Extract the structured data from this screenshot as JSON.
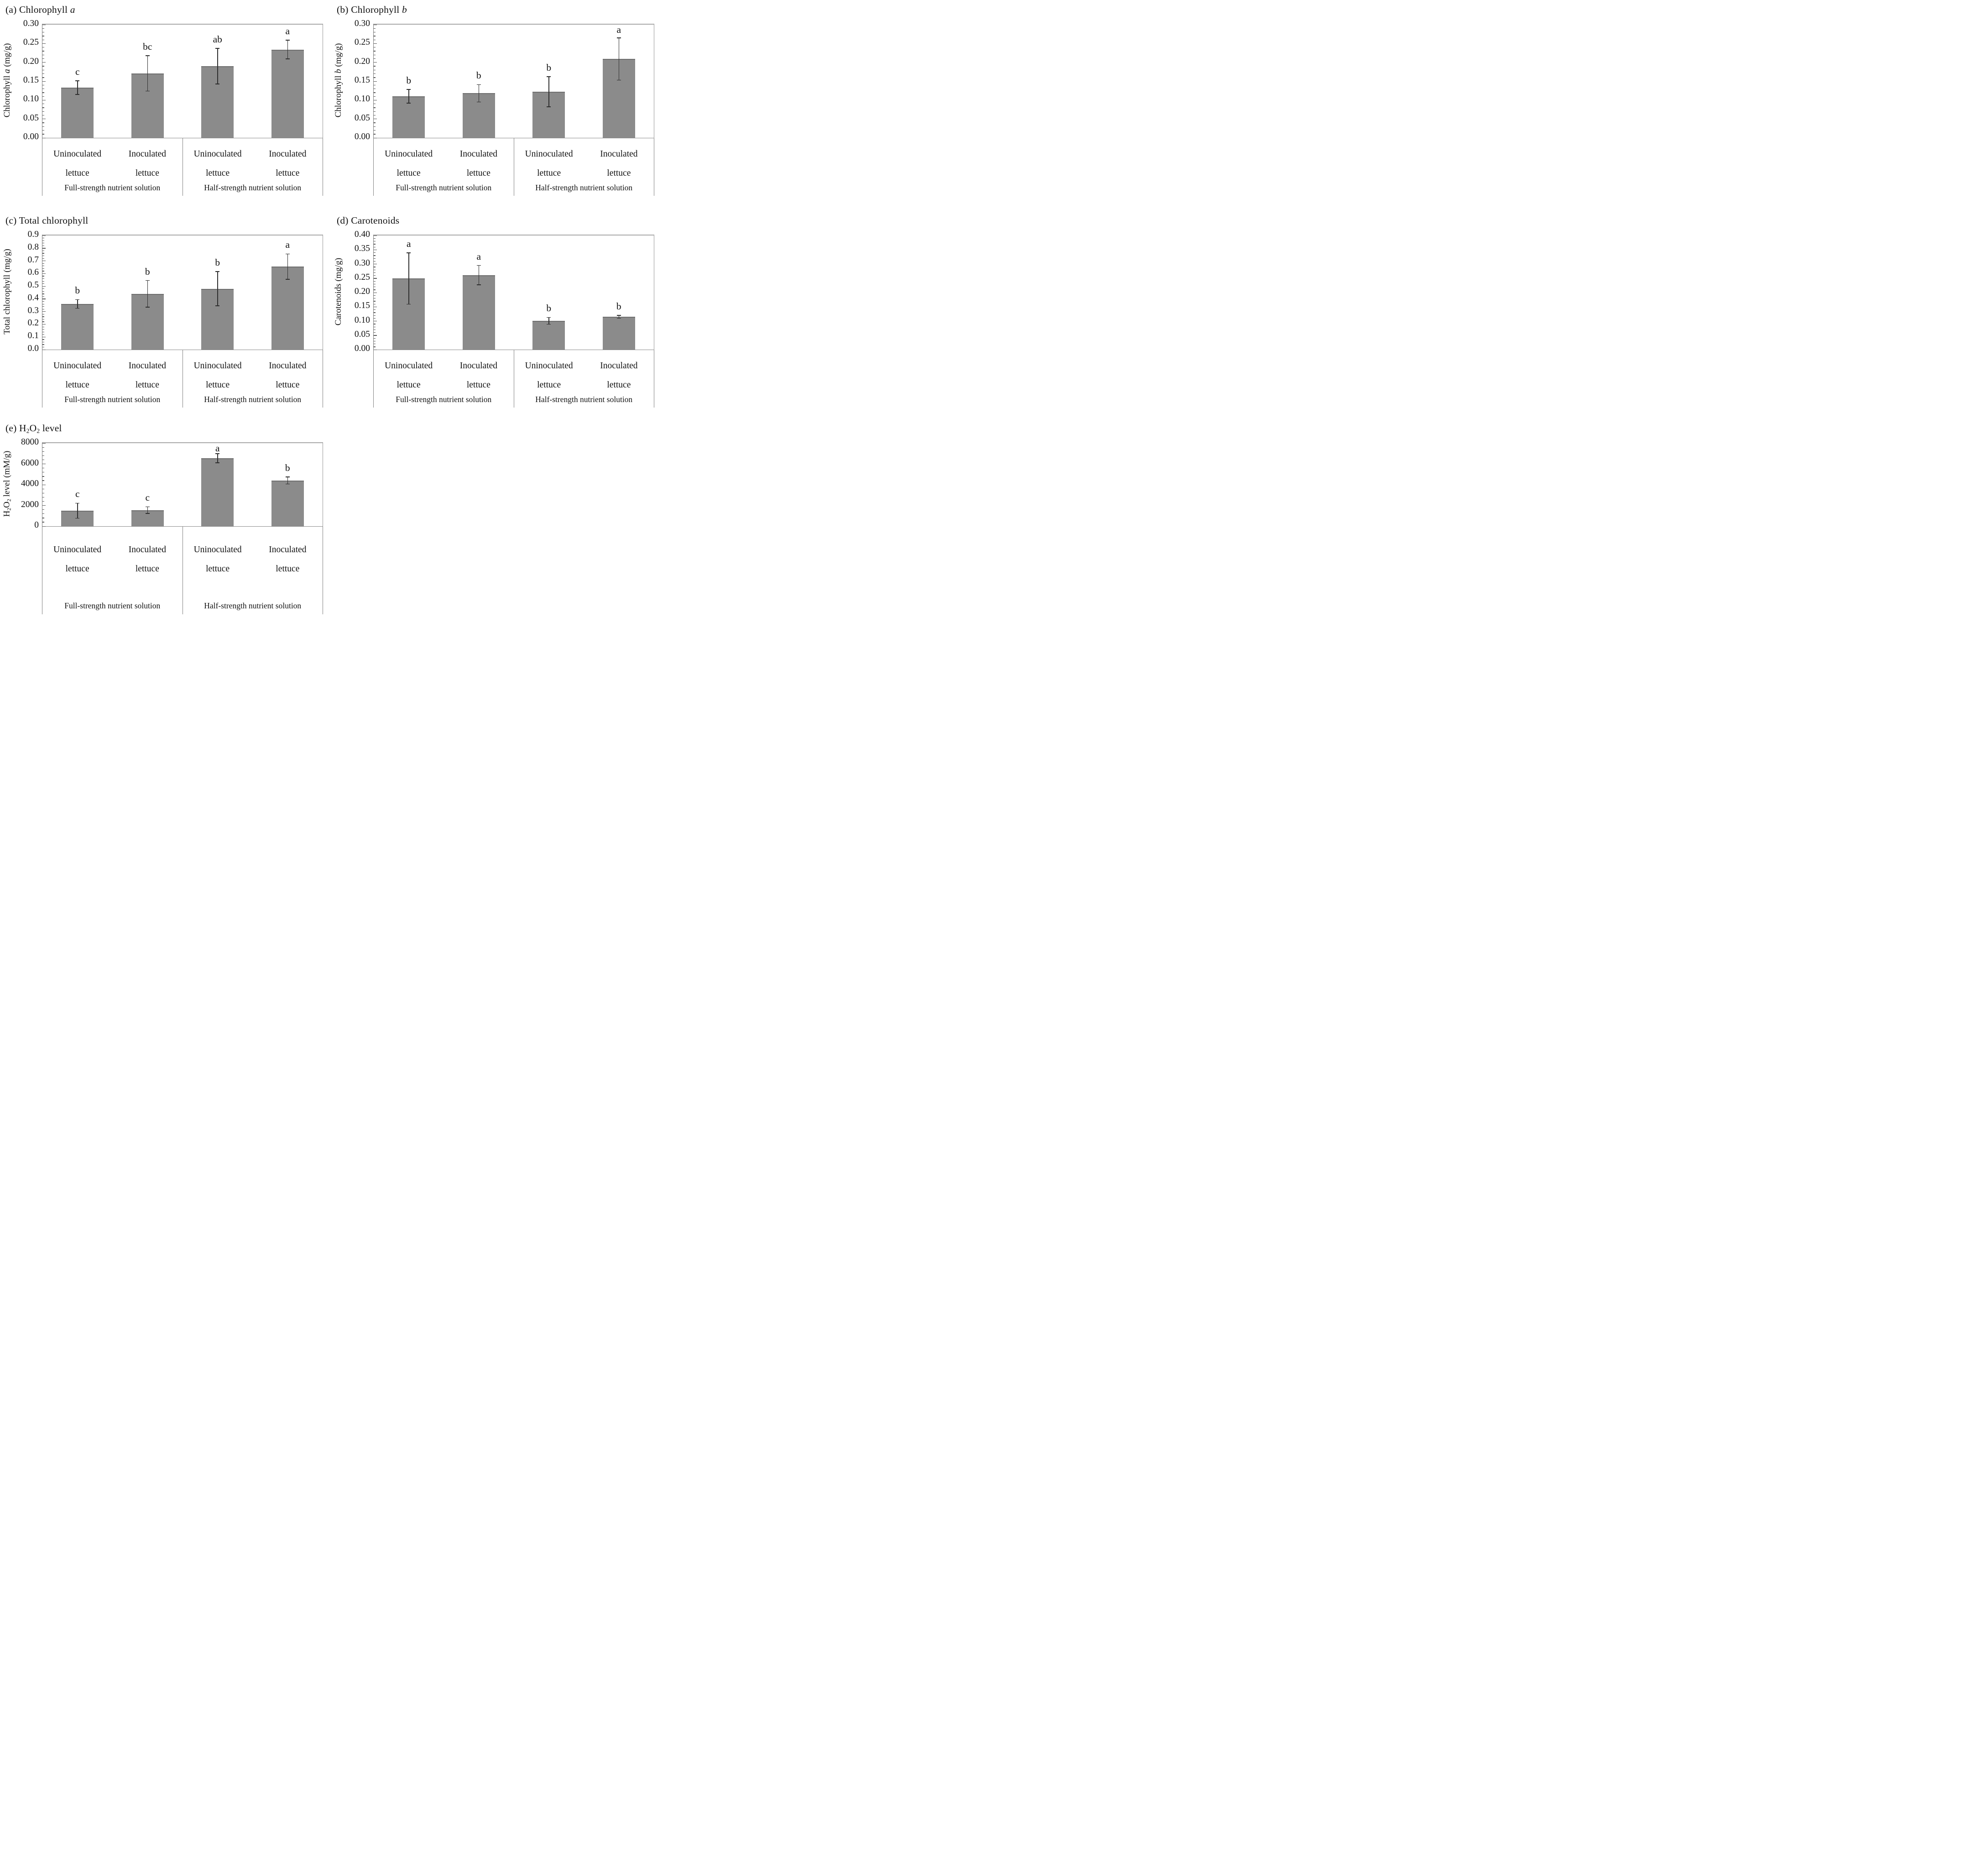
{
  "style": {
    "bar_fill": "#8b8b8b",
    "bar_cap": "#6e6e6e",
    "axis_color": "#7f7f7f",
    "error_color": "#2e2e2e",
    "text_color": "#111111",
    "background": "#ffffff"
  },
  "chart_data": [
    {
      "type": "bar",
      "panel": "a",
      "title_segments": [
        {
          "t": "(a) Chlorophyll ",
          "s": "n"
        },
        {
          "t": "a",
          "s": "i"
        }
      ],
      "ylabel_segments": [
        {
          "t": "Chlorophyll ",
          "s": "n"
        },
        {
          "t": "a",
          "s": "i"
        },
        {
          "t": " (mg/g)",
          "s": "n"
        }
      ],
      "ylim": [
        0,
        0.3
      ],
      "yticks": [
        "0.00",
        "0.05",
        "0.10",
        "0.15",
        "0.20",
        "0.25",
        "0.30"
      ],
      "minor_divisions_per_major": 5,
      "grid": false,
      "legend": "none",
      "categories": [
        "Uninoculated lettuce",
        "Inoculated lettuce",
        "Uninoculated lettuce",
        "Inoculated lettuce"
      ],
      "groups": [
        "Full-strength nutrient solution",
        "Half-strength nutrient solution"
      ],
      "values": [
        0.133,
        0.171,
        0.19,
        0.234
      ],
      "errors": [
        0.018,
        0.047,
        0.047,
        0.025
      ],
      "letters": [
        "c",
        "bc",
        "ab",
        "a"
      ]
    },
    {
      "type": "bar",
      "panel": "b",
      "title_segments": [
        {
          "t": "(b) Chlorophyll ",
          "s": "n"
        },
        {
          "t": "b",
          "s": "i"
        }
      ],
      "ylabel_segments": [
        {
          "t": "Chlorophyll ",
          "s": "n"
        },
        {
          "t": "b",
          "s": "i"
        },
        {
          "t": " (mg/g)",
          "s": "n"
        }
      ],
      "ylim": [
        0,
        0.3
      ],
      "yticks": [
        "0.00",
        "0.05",
        "0.10",
        "0.15",
        "0.20",
        "0.25",
        "0.30"
      ],
      "minor_divisions_per_major": 5,
      "grid": false,
      "legend": "none",
      "categories": [
        "Uninoculated lettuce",
        "Inoculated lettuce",
        "Uninoculated lettuce",
        "Inoculated lettuce"
      ],
      "groups": [
        "Full-strength nutrient solution",
        "Half-strength nutrient solution"
      ],
      "values": [
        0.11,
        0.118,
        0.122,
        0.209
      ],
      "errors": [
        0.018,
        0.023,
        0.04,
        0.056
      ],
      "letters": [
        "b",
        "b",
        "b",
        "a"
      ]
    },
    {
      "type": "bar",
      "panel": "c",
      "title_segments": [
        {
          "t": "(c) Total chlorophyll",
          "s": "n"
        }
      ],
      "ylabel_segments": [
        {
          "t": "Total chlorophyll (mg/g)",
          "s": "n"
        }
      ],
      "ylim": [
        0,
        0.9
      ],
      "yticks": [
        "0.0",
        "0.1",
        "0.2",
        "0.3",
        "0.4",
        "0.5",
        "0.6",
        "0.7",
        "0.8",
        "0.9"
      ],
      "minor_divisions_per_major": 5,
      "grid": false,
      "legend": "none",
      "categories": [
        "Uninoculated lettuce",
        "Inoculated lettuce",
        "Uninoculated lettuce",
        "Inoculated lettuce"
      ],
      "groups": [
        "Full-strength nutrient solution",
        "Half-strength nutrient solution"
      ],
      "values": [
        0.36,
        0.44,
        0.48,
        0.655
      ],
      "errors": [
        0.035,
        0.105,
        0.135,
        0.1
      ],
      "letters": [
        "b",
        "b",
        "b",
        "a"
      ]
    },
    {
      "type": "bar",
      "panel": "d",
      "title_segments": [
        {
          "t": "(d) Carotenoids",
          "s": "n"
        }
      ],
      "ylabel_segments": [
        {
          "t": "Carotenoids (mg/g)",
          "s": "n"
        }
      ],
      "ylim": [
        0,
        0.4
      ],
      "yticks": [
        "0.00",
        "0.05",
        "0.10",
        "0.15",
        "0.20",
        "0.25",
        "0.30",
        "0.35",
        "0.40"
      ],
      "minor_divisions_per_major": 5,
      "grid": false,
      "legend": "none",
      "categories": [
        "Uninoculated lettuce",
        "Inoculated lettuce",
        "Uninoculated lettuce",
        "Inoculated lettuce"
      ],
      "groups": [
        "Full-strength nutrient solution",
        "Half-strength nutrient solution"
      ],
      "values": [
        0.249,
        0.261,
        0.101,
        0.115
      ],
      "errors": [
        0.09,
        0.034,
        0.012,
        0.005
      ],
      "letters": [
        "a",
        "a",
        "b",
        "b"
      ]
    },
    {
      "type": "bar",
      "panel": "e",
      "title_segments": [
        {
          "t": "(e) H",
          "s": "n"
        },
        {
          "t": "2",
          "s": "s"
        },
        {
          "t": "O",
          "s": "n"
        },
        {
          "t": "2",
          "s": "s"
        },
        {
          "t": " level",
          "s": "n"
        }
      ],
      "ylabel_segments": [
        {
          "t": "H",
          "s": "n"
        },
        {
          "t": "2",
          "s": "s"
        },
        {
          "t": "O",
          "s": "n"
        },
        {
          "t": "2",
          "s": "s"
        },
        {
          "t": " level (mM/g)",
          "s": "n"
        }
      ],
      "ylim": [
        0,
        8000
      ],
      "yticks": [
        "0",
        "2000",
        "4000",
        "6000",
        "8000"
      ],
      "minor_divisions_per_major": 5,
      "grid": false,
      "legend": "none",
      "categories": [
        "Uninoculated lettuce",
        "Inoculated lettuce",
        "Uninoculated lettuce",
        "Inoculated lettuce"
      ],
      "groups": [
        "Full-strength nutrient solution",
        "Half-strength nutrient solution"
      ],
      "values": [
        1500,
        1550,
        6550,
        4400
      ],
      "errors": [
        720,
        320,
        450,
        340
      ],
      "letters": [
        "c",
        "c",
        "a",
        "b"
      ]
    }
  ]
}
